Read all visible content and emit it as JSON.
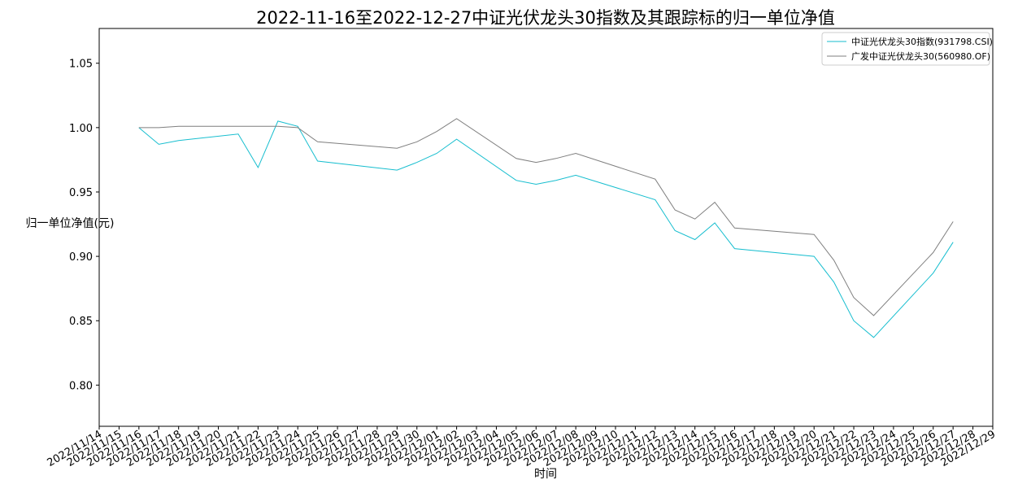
{
  "chart_data": {
    "type": "line",
    "title": "2022-11-16至2022-12-27中证光伏龙头30指数及其跟踪标的归一单位净值",
    "x_label": "时间",
    "y_label": "归一单位净值(元)",
    "x": [
      "2022/11/16",
      "2022/11/17",
      "2022/11/18",
      "2022/11/21",
      "2022/11/22",
      "2022/11/23",
      "2022/11/24",
      "2022/11/25",
      "2022/11/29",
      "2022/11/30",
      "2022/12/01",
      "2022/12/02",
      "2022/12/05",
      "2022/12/06",
      "2022/12/07",
      "2022/12/08",
      "2022/12/12",
      "2022/12/13",
      "2022/12/14",
      "2022/12/15",
      "2022/12/16",
      "2022/12/20",
      "2022/12/21",
      "2022/12/22",
      "2022/12/23",
      "2022/12/26",
      "2022/12/27"
    ],
    "series": [
      {
        "name": "中证光伏龙头30指数(931798.CSI)",
        "color": "#17becf",
        "values": [
          1.0,
          0.987,
          0.99,
          0.995,
          0.969,
          1.005,
          1.001,
          0.974,
          0.967,
          0.973,
          0.98,
          0.991,
          0.959,
          0.956,
          0.959,
          0.963,
          0.944,
          0.92,
          0.913,
          0.926,
          0.906,
          0.9,
          0.88,
          0.85,
          0.837,
          0.887,
          0.911
        ]
      },
      {
        "name": "广发中证光伏龙头30(560980.OF)",
        "color": "#7f7f7f",
        "values": [
          1.0,
          1.0,
          1.001,
          1.001,
          1.001,
          1.001,
          1.0,
          0.989,
          0.984,
          0.989,
          0.997,
          1.007,
          0.976,
          0.973,
          0.976,
          0.98,
          0.96,
          0.936,
          0.929,
          0.942,
          0.922,
          0.917,
          0.897,
          0.868,
          0.854,
          0.903,
          0.927
        ]
      }
    ],
    "xlim": [
      "2022/11/14",
      "2022/12/29"
    ],
    "xticks": [
      "2022/11/14",
      "2022/11/15",
      "2022/11/16",
      "2022/11/17",
      "2022/11/18",
      "2022/11/19",
      "2022/11/20",
      "2022/11/21",
      "2022/11/22",
      "2022/11/23",
      "2022/11/24",
      "2022/11/25",
      "2022/11/26",
      "2022/11/27",
      "2022/11/28",
      "2022/11/29",
      "2022/11/30",
      "2022/12/01",
      "2022/12/02",
      "2022/12/03",
      "2022/12/04",
      "2022/12/05",
      "2022/12/06",
      "2022/12/07",
      "2022/12/08",
      "2022/12/09",
      "2022/12/10",
      "2022/12/11",
      "2022/12/12",
      "2022/12/13",
      "2022/12/14",
      "2022/12/15",
      "2022/12/16",
      "2022/12/17",
      "2022/12/18",
      "2022/12/19",
      "2022/12/20",
      "2022/12/21",
      "2022/12/22",
      "2022/12/23",
      "2022/12/24",
      "2022/12/25",
      "2022/12/26",
      "2022/12/27",
      "2022/12/28",
      "2022/12/29"
    ],
    "ylim": [
      0.768,
      1.077
    ],
    "yticks": [
      {
        "value": 0.8,
        "label": "0.80"
      },
      0.85,
      {
        "value": 0.9,
        "label": "0.90"
      },
      0.95,
      {
        "value": 1.0,
        "label": "1.00"
      },
      1.05
    ],
    "legend": "upper right"
  }
}
